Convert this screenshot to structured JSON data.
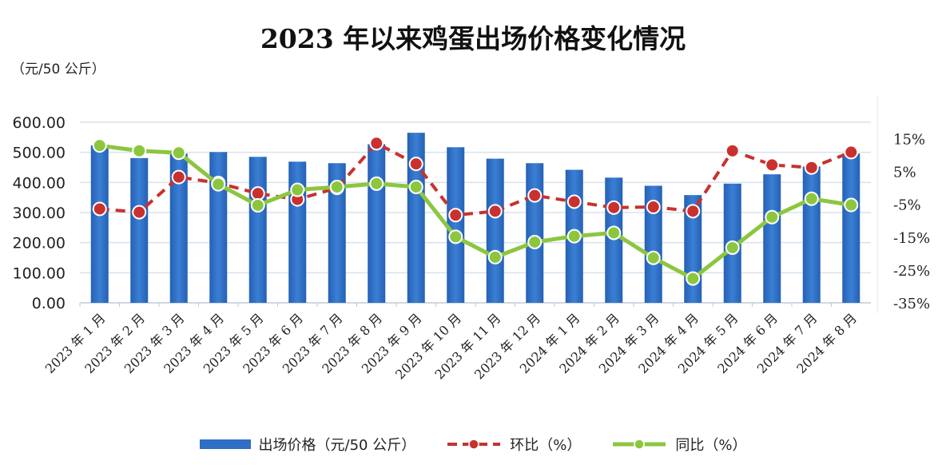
{
  "chart_data": {
    "type": "bar+line",
    "title": "2023 年以来鸡蛋出场价格变化情况",
    "ylabel_left": "（元/50 公斤）",
    "categories": [
      "2023 年 1 月",
      "2023 年 2 月",
      "2023 年 3 月",
      "2023 年 4 月",
      "2023 年 5 月",
      "2023 年 6 月",
      "2023 年 7 月",
      "2023 年 8 月",
      "2023 年 9 月",
      "2023 年 10 月",
      "2023 年 11 月",
      "2023 年 12 月",
      "2024 年 1 月",
      "2024 年 2 月",
      "2024 年 3 月",
      "2024 年 4 月",
      "2024 年 5 月",
      "2024 年 6 月",
      "2024 年 7 月",
      "2024 年 8 月"
    ],
    "left_axis": {
      "ylim": [
        0,
        600
      ],
      "ticks": [
        "0.00",
        "100.00",
        "200.00",
        "300.00",
        "400.00",
        "500.00",
        "600.00"
      ]
    },
    "right_axis": {
      "ylim": [
        -35,
        20
      ],
      "ticks": [
        "-35%",
        "-25%",
        "-15%",
        "-5%",
        "5%",
        "15%"
      ]
    },
    "grid": true,
    "legend_position": "bottom",
    "series": [
      {
        "name": "出场价格（元/50 公斤）",
        "type": "bar",
        "axis": "left",
        "color": "#2f6fc4",
        "values": [
          523,
          481,
          496,
          501,
          485,
          469,
          464,
          527,
          565,
          517,
          479,
          464,
          442,
          416,
          389,
          358,
          396,
          427,
          453,
          496
        ]
      },
      {
        "name": "环比（%）",
        "type": "line-dashed",
        "axis": "right",
        "color": "#c8312f",
        "values": [
          -6.4,
          -7.4,
          3.3,
          1.5,
          -1.7,
          -3.5,
          0.0,
          13.6,
          7.3,
          -8.3,
          -7.1,
          -2.3,
          -4.2,
          -6.0,
          -5.8,
          -7.1,
          11.3,
          7.0,
          6.2,
          10.9
        ]
      },
      {
        "name": "同比（%）",
        "type": "line",
        "axis": "right",
        "color": "#8cc63f",
        "values": [
          12.9,
          11.3,
          10.7,
          1.1,
          -5.3,
          -0.6,
          0.3,
          1.3,
          0.3,
          -14.9,
          -21.1,
          -16.5,
          -14.7,
          -13.7,
          -21.3,
          -27.6,
          -18.2,
          -8.9,
          -3.3,
          -5.2
        ]
      }
    ]
  }
}
